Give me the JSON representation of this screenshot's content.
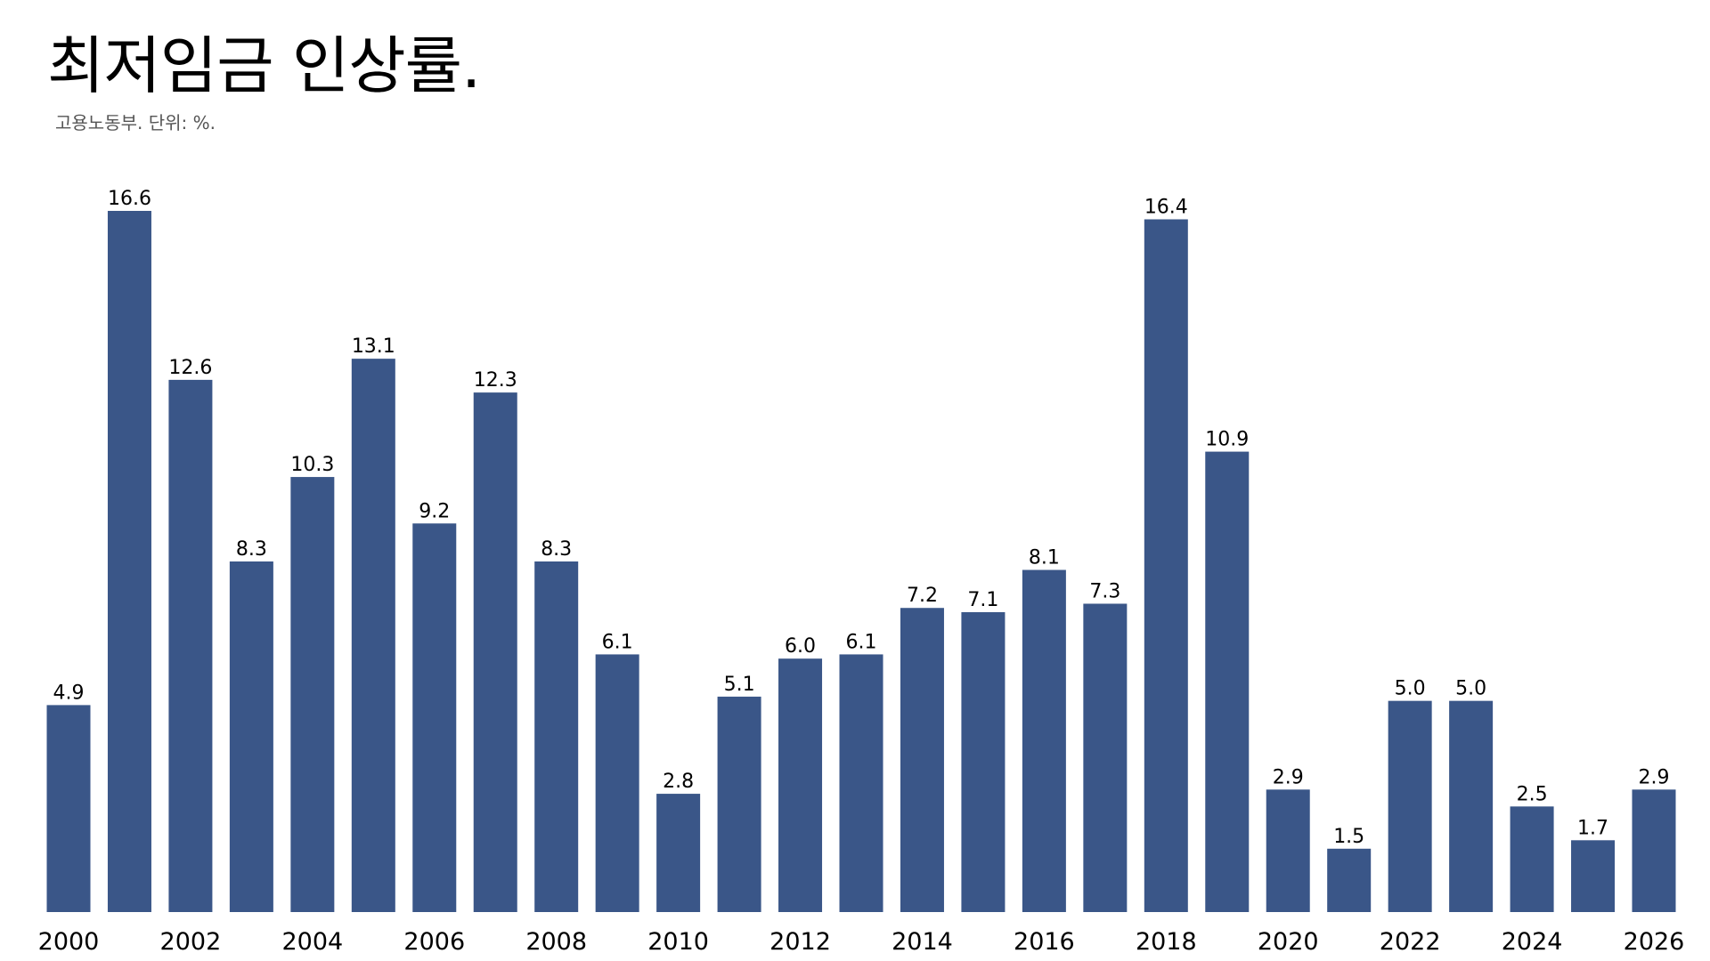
{
  "chart_data": {
    "type": "bar",
    "title": "최저임금 인상률.",
    "subtitle": "고용노동부.  단위: %.",
    "xlabel": "",
    "ylabel": "",
    "ylim": [
      0,
      16.6
    ],
    "grid": false,
    "legend": "none",
    "categories": [
      "2000",
      "2001",
      "2002",
      "2003",
      "2004",
      "2005",
      "2006",
      "2007",
      "2008",
      "2009",
      "2010",
      "2011",
      "2012",
      "2013",
      "2014",
      "2015",
      "2016",
      "2017",
      "2018",
      "2019",
      "2020",
      "2021",
      "2022",
      "2023",
      "2024",
      "2025",
      "2026"
    ],
    "x_tick_labels": [
      "2000",
      "2002",
      "2004",
      "2006",
      "2008",
      "2010",
      "2012",
      "2014",
      "2016",
      "2018",
      "2020",
      "2022",
      "2024",
      "2026"
    ],
    "values": [
      4.9,
      16.6,
      12.6,
      8.3,
      10.3,
      13.1,
      9.2,
      12.3,
      8.3,
      6.1,
      2.8,
      5.1,
      6.0,
      6.1,
      7.2,
      7.1,
      8.1,
      7.3,
      16.4,
      10.9,
      2.9,
      1.5,
      5.0,
      5.0,
      2.5,
      1.7,
      2.9
    ],
    "value_labels": [
      "4.9",
      "16.6",
      "12.6",
      "8.3",
      "10.3",
      "13.1",
      "9.2",
      "12.3",
      "8.3",
      "6.1",
      "2.8",
      "5.1",
      "6.0",
      "6.1",
      "7.2",
      "7.1",
      "8.1",
      "7.3",
      "16.4",
      "10.9",
      "2.9",
      "1.5",
      "5.0",
      "5.0",
      "2.5",
      "1.7",
      "2.9"
    ],
    "colors": {
      "bar": "#3a5688"
    }
  }
}
